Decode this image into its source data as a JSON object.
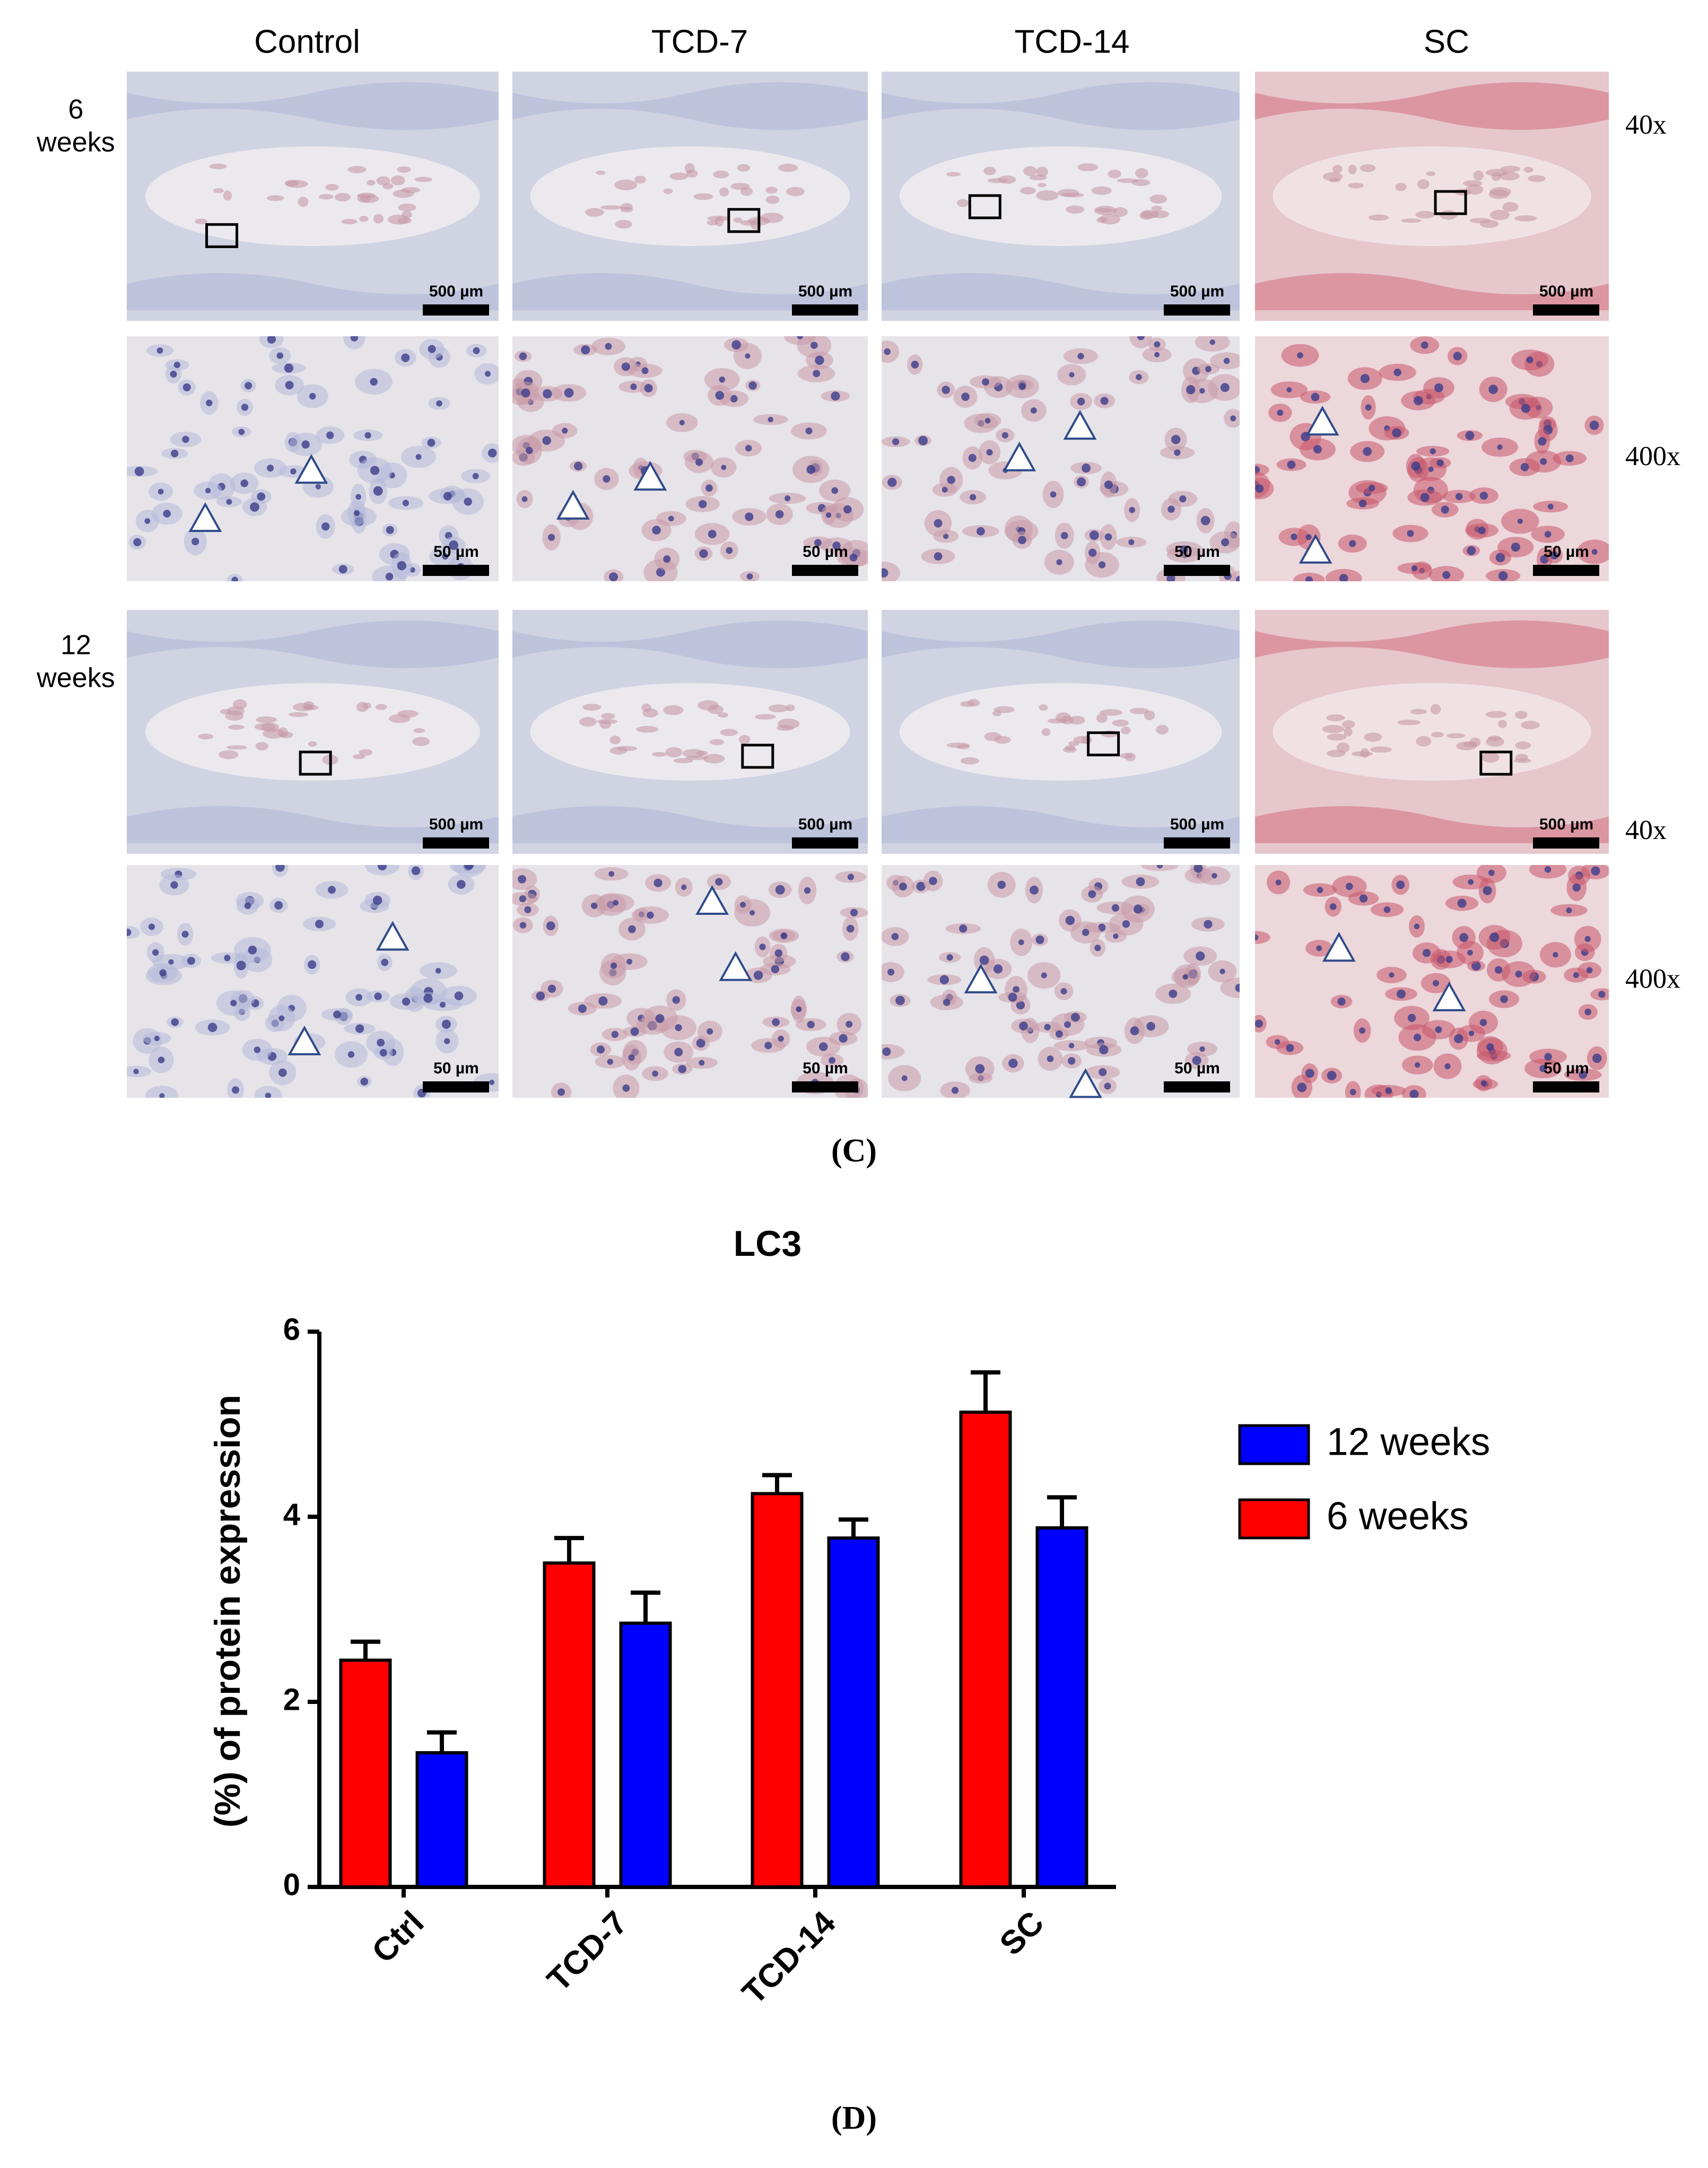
{
  "panel_c": {
    "columns": [
      "Control",
      "TCD-7",
      "TCD-14",
      "SC"
    ],
    "rows": [
      {
        "label": [
          "6",
          "weeks"
        ],
        "magnification": "40x",
        "scale_bar": "500 µm"
      },
      {
        "magnification": "400x",
        "scale_bar": "50 µm"
      },
      {
        "label": [
          "12",
          "weeks"
        ],
        "magnification": "40x",
        "scale_bar": "500 µm"
      },
      {
        "magnification": "400x",
        "scale_bar": "50 µm"
      }
    ],
    "panel_label": "(C)"
  },
  "chart_data": {
    "type": "bar",
    "title": "LC3",
    "y_label": "(%) of protein expression",
    "categories": [
      "Ctrl",
      "TCD-7",
      "TCD-14",
      "SC"
    ],
    "series": [
      {
        "name": "12 weeks",
        "color": "#0000ff",
        "values": [
          1.45,
          2.85,
          3.77,
          3.88
        ],
        "errors": [
          0.22,
          0.33,
          0.2,
          0.33
        ]
      },
      {
        "name": "6 weeks",
        "color": "#ff0000",
        "values": [
          2.45,
          3.5,
          4.25,
          5.13
        ],
        "errors": [
          0.2,
          0.27,
          0.2,
          0.43
        ]
      }
    ],
    "ylim": [
      0,
      6
    ],
    "yticks": [
      0,
      2,
      4,
      6
    ]
  },
  "panel_d_label": "(D)"
}
